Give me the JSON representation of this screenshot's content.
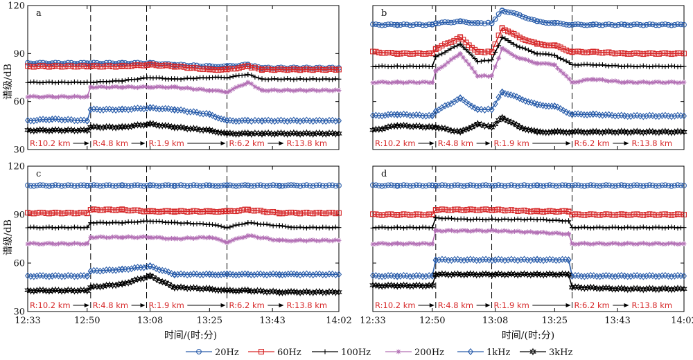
{
  "chart_data": {
    "type": "line",
    "x_ticks": [
      "12:33",
      "12:50",
      "13:08",
      "13:25",
      "13:43",
      "14:02"
    ],
    "y_ticks": [
      30,
      60,
      90,
      120
    ],
    "ylim": [
      30,
      120
    ],
    "xlabel": "时间/(时:分)",
    "ylabel": "谱级/dB",
    "grid": false,
    "legend_position": "bottom",
    "event_boundaries_time": [
      "12:51",
      "13:07",
      "13:30"
    ],
    "range_labels": [
      "R:10.2 km",
      "R:4.8 km",
      "R:1.9 km",
      "R:6.2 km",
      "R:13.8 km"
    ],
    "range_label_color": "#d62728",
    "series_styles": [
      {
        "name": "20Hz",
        "color": "#2b5eab",
        "marker": "circle"
      },
      {
        "name": "60Hz",
        "color": "#d62728",
        "marker": "square"
      },
      {
        "name": "100Hz",
        "color": "#000000",
        "marker": "plus"
      },
      {
        "name": "200Hz",
        "color": "#b370b5",
        "marker": "asterisk"
      },
      {
        "name": "1kHz",
        "color": "#2b5eab",
        "marker": "diamond"
      },
      {
        "name": "3kHz",
        "color": "#000000",
        "marker": "hexagram"
      }
    ],
    "panels": [
      {
        "label": "a",
        "x": [
          "12:33",
          "12:40",
          "12:50",
          "12:51",
          "13:00",
          "13:08",
          "13:15",
          "13:25",
          "13:30",
          "13:36",
          "13:40",
          "13:50",
          "14:02"
        ],
        "series": [
          {
            "name": "20Hz",
            "values": [
              84,
              84,
              84,
              84,
              84,
              84,
              83,
              82,
              82,
              83,
              81,
              81,
              81
            ]
          },
          {
            "name": "60Hz",
            "values": [
              82,
              82,
              82,
              82,
              82,
              83,
              82,
              80,
              80,
              82,
              80,
              80,
              80
            ]
          },
          {
            "name": "100Hz",
            "values": [
              72,
              72,
              72,
              72,
              73,
              75,
              74,
              75,
              75,
              77,
              74,
              74,
              74
            ]
          },
          {
            "name": "200Hz",
            "values": [
              63,
              63,
              63,
              69,
              69,
              69,
              69,
              67,
              66,
              72,
              67,
              67,
              67
            ]
          },
          {
            "name": "1kHz",
            "values": [
              48,
              49,
              48,
              55,
              55,
              56,
              55,
              52,
              48,
              48,
              48,
              48,
              48
            ]
          },
          {
            "name": "3kHz",
            "values": [
              42,
              42,
              42,
              44,
              44,
              46,
              44,
              42,
              40,
              40,
              40,
              40,
              40
            ]
          }
        ]
      },
      {
        "label": "b",
        "x": [
          "12:33",
          "12:40",
          "12:50",
          "12:51",
          "12:58",
          "13:03",
          "13:07",
          "13:10",
          "13:15",
          "13:20",
          "13:25",
          "13:30",
          "13:36",
          "13:45",
          "14:02"
        ],
        "series": [
          {
            "name": "20Hz",
            "values": [
              108,
              108,
              108,
              109,
              110,
              109,
              109,
              117,
              114,
              110,
              109,
              108,
              108,
              108,
              108
            ]
          },
          {
            "name": "60Hz",
            "values": [
              91,
              90,
              90,
              93,
              100,
              91,
              91,
              106,
              100,
              96,
              95,
              91,
              91,
              90,
              90
            ]
          },
          {
            "name": "100Hz",
            "values": [
              82,
              82,
              82,
              88,
              96,
              85,
              86,
              100,
              94,
              90,
              89,
              83,
              83,
              82,
              82
            ]
          },
          {
            "name": "200Hz",
            "values": [
              72,
              72,
              72,
              79,
              90,
              76,
              76,
              93,
              87,
              84,
              83,
              72,
              74,
              72,
              72
            ]
          },
          {
            "name": "1kHz",
            "values": [
              51,
              52,
              51,
              54,
              62,
              55,
              55,
              66,
              62,
              58,
              57,
              52,
              52,
              51,
              51
            ]
          },
          {
            "name": "3kHz",
            "values": [
              42,
              45,
              44,
              44,
              41,
              46,
              44,
              50,
              44,
              41,
              41,
              41,
              41,
              41,
              41
            ]
          }
        ]
      },
      {
        "label": "c",
        "x": [
          "12:33",
          "12:40",
          "12:50",
          "12:51",
          "13:00",
          "13:08",
          "13:15",
          "13:25",
          "13:30",
          "13:36",
          "13:45",
          "13:50",
          "14:02"
        ],
        "series": [
          {
            "name": "20Hz",
            "values": [
              108,
              108,
              108,
              108,
              108,
              108,
              108,
              108,
              108,
              108,
              108,
              108,
              108
            ]
          },
          {
            "name": "60Hz",
            "values": [
              91,
              91,
              91,
              93,
              93,
              92,
              92,
              92,
              92,
              93,
              91,
              91,
              91
            ]
          },
          {
            "name": "100Hz",
            "values": [
              82,
              82,
              82,
              85,
              85,
              86,
              85,
              84,
              82,
              85,
              83,
              82,
              82
            ]
          },
          {
            "name": "200Hz",
            "values": [
              72,
              72,
              72,
              76,
              76,
              76,
              75,
              76,
              73,
              77,
              74,
              74,
              74
            ]
          },
          {
            "name": "1kHz",
            "values": [
              52,
              52,
              52,
              55,
              56,
              58,
              53,
              53,
              53,
              53,
              53,
              53,
              53
            ]
          },
          {
            "name": "3kHz",
            "values": [
              43,
              43,
              43,
              45,
              47,
              52,
              45,
              44,
              43,
              43,
              42,
              42,
              42
            ]
          }
        ]
      },
      {
        "label": "d",
        "x": [
          "12:33",
          "12:40",
          "12:50",
          "12:51",
          "13:00",
          "13:08",
          "13:20",
          "13:29",
          "13:30",
          "13:45",
          "14:02"
        ],
        "series": [
          {
            "name": "20Hz",
            "values": [
              108,
              108,
              108,
              108,
              108,
              108,
              108,
              108,
              108,
              108,
              108
            ]
          },
          {
            "name": "60Hz",
            "values": [
              90,
              90,
              90,
              93,
              93,
              93,
              92,
              92,
              90,
              90,
              90
            ]
          },
          {
            "name": "100Hz",
            "values": [
              82,
              82,
              82,
              88,
              87,
              87,
              87,
              86,
              82,
              82,
              82
            ]
          },
          {
            "name": "200Hz",
            "values": [
              72,
              72,
              72,
              80,
              80,
              80,
              79,
              78,
              72,
              72,
              72
            ]
          },
          {
            "name": "1kHz",
            "values": [
              52,
              52,
              52,
              62,
              62,
              62,
              62,
              62,
              52,
              52,
              52
            ]
          },
          {
            "name": "3kHz",
            "values": [
              46,
              46,
              46,
              53,
              53,
              53,
              53,
              53,
              45,
              44,
              44
            ]
          }
        ]
      }
    ]
  }
}
